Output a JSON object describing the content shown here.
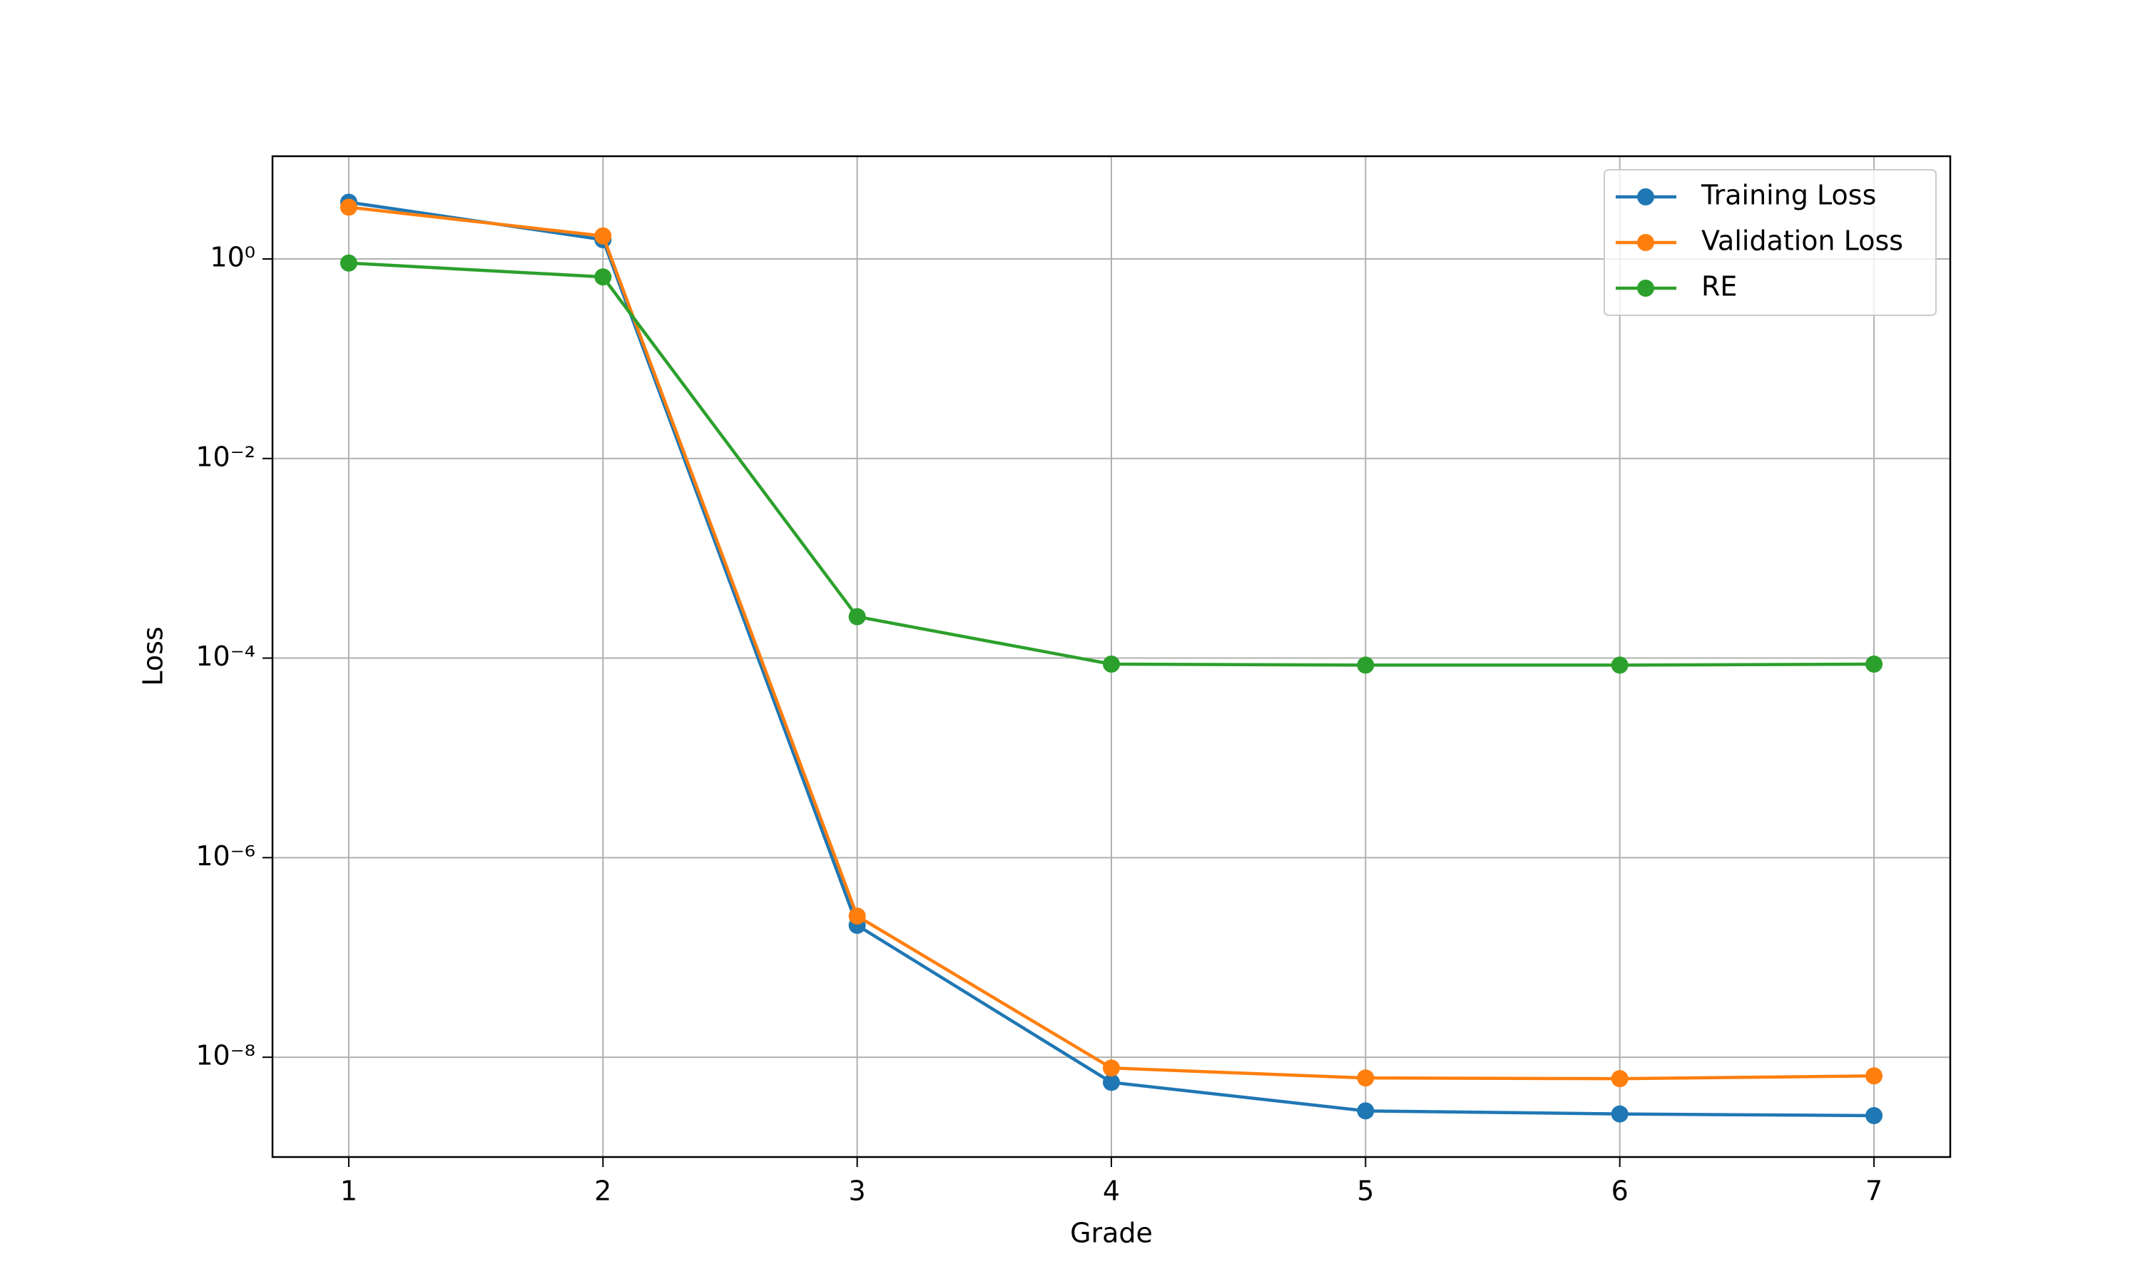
{
  "chart_data": {
    "type": "line",
    "xlabel": "Grade",
    "ylabel": "Loss",
    "x": [
      1,
      2,
      3,
      4,
      5,
      6,
      7
    ],
    "xlim": [
      0.7,
      7.3
    ],
    "xticks": [
      1,
      2,
      3,
      4,
      5,
      6,
      7
    ],
    "ylim": [
      1e-09,
      10.7
    ],
    "yscale": "log",
    "yticks": [
      {
        "value": 1e-08,
        "label": "10⁻⁸"
      },
      {
        "value": 1e-06,
        "label": "10⁻⁶"
      },
      {
        "value": 0.0001,
        "label": "10⁻⁴"
      },
      {
        "value": 0.01,
        "label": "10⁻²"
      },
      {
        "value": 1,
        "label": "10⁰"
      }
    ],
    "grid": true,
    "legend": "upper right",
    "series": [
      {
        "name": "Training Loss",
        "color": "#1f77b4",
        "values": [
          3.7,
          1.56,
          2.1e-07,
          5.6e-09,
          2.9e-09,
          2.7e-09,
          2.6e-09
        ]
      },
      {
        "name": "Validation Loss",
        "color": "#ff7f0e",
        "values": [
          3.3,
          1.7,
          2.6e-07,
          7.8e-09,
          6.2e-09,
          6.1e-09,
          6.5e-09
        ]
      },
      {
        "name": "RE",
        "color": "#2ca02c",
        "values": [
          0.91,
          0.66,
          0.00026,
          8.7e-05,
          8.5e-05,
          8.5e-05,
          8.7e-05
        ]
      }
    ]
  }
}
